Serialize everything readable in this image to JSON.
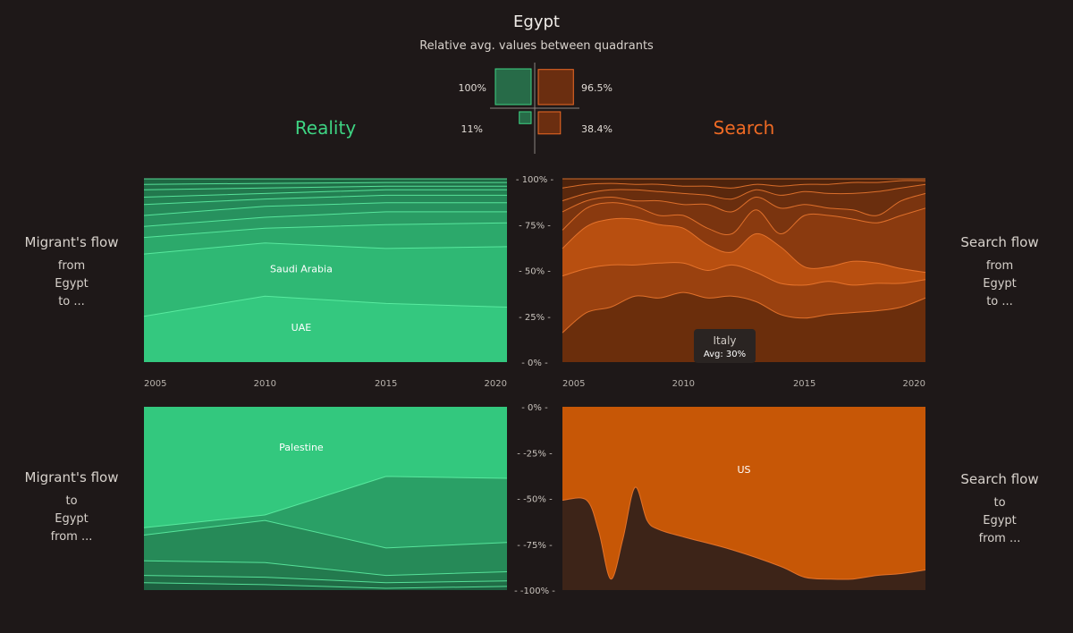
{
  "header": {
    "title": "Egypt",
    "subtitle": "Relative avg. values between quadrants"
  },
  "quadrant_legend": {
    "top_left_pct": "100%",
    "top_right_pct": "96.5%",
    "bottom_left_pct": "11%",
    "bottom_right_pct": "38.4%",
    "top_left_value": 100,
    "top_right_value": 96.5,
    "bottom_left_value": 11,
    "bottom_right_value": 38.4
  },
  "sections": {
    "reality": "Reality",
    "search": "Search"
  },
  "side_labels": {
    "top_left": {
      "head": "Migrant's flow",
      "l1": "from",
      "l2": "Egypt",
      "l3": "to ..."
    },
    "bottom_left": {
      "head": "Migrant's flow",
      "l1": "to",
      "l2": "Egypt",
      "l3": "from ..."
    },
    "top_right": {
      "head": "Search flow",
      "l1": "from",
      "l2": "Egypt",
      "l3": "to ..."
    },
    "bottom_right": {
      "head": "Search flow",
      "l1": "to",
      "l2": "Egypt",
      "l3": "from ..."
    }
  },
  "axis": {
    "top_ticks": [
      "- 100% -",
      "- 75% -",
      "- 50% -",
      "- 25% -",
      "- 0% -"
    ],
    "bottom_ticks": [
      "- 0% -",
      "- -25% -",
      "- -50% -",
      "- -75% -",
      "- -100% -"
    ],
    "x_ticks": [
      "2005",
      "2010",
      "2015",
      "2020"
    ]
  },
  "tooltip": {
    "name": "Italy",
    "avg": "Avg: 30%"
  },
  "colors": {
    "background": "#1e1818",
    "reality_accent": "#3ed483",
    "search_accent": "#ef6a24"
  },
  "chart_data": [
    {
      "type": "area",
      "id": "reality-top",
      "stacked": true,
      "normalized": true,
      "x": [
        2005,
        2010,
        2015,
        2020
      ],
      "ylim": [
        0,
        100
      ],
      "boundaries": [
        [
          25,
          36,
          32,
          30
        ],
        [
          59,
          65,
          62,
          63
        ],
        [
          68,
          73,
          75,
          76
        ],
        [
          74,
          79,
          82,
          82
        ],
        [
          80,
          85,
          87,
          87
        ],
        [
          86,
          89,
          91,
          91
        ],
        [
          90,
          92,
          94,
          94
        ],
        [
          94,
          95,
          96,
          96
        ],
        [
          97,
          97.5,
          98,
          98
        ],
        [
          100,
          100,
          100,
          100
        ]
      ],
      "labels": [
        {
          "text": "UAE",
          "x": 2011.5,
          "y": 17
        },
        {
          "text": "Saudi Arabia",
          "x": 2011.5,
          "y": 49
        }
      ]
    },
    {
      "type": "area",
      "id": "search-top",
      "stacked": true,
      "normalized": true,
      "x": [
        2005,
        2006,
        2007,
        2008,
        2009,
        2010,
        2011,
        2012,
        2013,
        2014,
        2015,
        2016,
        2017,
        2018,
        2019,
        2020
      ],
      "ylim": [
        0,
        100
      ],
      "boundaries": [
        [
          16,
          27,
          30,
          36,
          35,
          38,
          35,
          36,
          33,
          26,
          24,
          26,
          27,
          28,
          30,
          35
        ],
        [
          47,
          51,
          53,
          53,
          54,
          54,
          50,
          53,
          49,
          43,
          42,
          44,
          42,
          43,
          43,
          45
        ],
        [
          62,
          74,
          78,
          78,
          75,
          73,
          64,
          60,
          70,
          63,
          52,
          52,
          55,
          54,
          51,
          49
        ],
        [
          72,
          84,
          87,
          85,
          80,
          80,
          73,
          70,
          83,
          70,
          80,
          80,
          78,
          76,
          80,
          84
        ],
        [
          82,
          88,
          90,
          88,
          88,
          86,
          86,
          82,
          90,
          84,
          86,
          84,
          83,
          80,
          88,
          92
        ],
        [
          88,
          92,
          94,
          94,
          93,
          92,
          91,
          89,
          94,
          91,
          93,
          92,
          92,
          93,
          95,
          97
        ],
        [
          95,
          97,
          97.5,
          97,
          97,
          96,
          96,
          95,
          97,
          96,
          97,
          97,
          98,
          98,
          99,
          99
        ],
        [
          100,
          100,
          100,
          100,
          100,
          100,
          100,
          100,
          100,
          100,
          100,
          100,
          100,
          100,
          100,
          100
        ]
      ],
      "labels": []
    },
    {
      "type": "area",
      "id": "reality-bottom",
      "stacked": true,
      "normalized": true,
      "x": [
        2005,
        2010,
        2015,
        2020
      ],
      "ylim": [
        -100,
        0
      ],
      "boundaries": [
        [
          -66,
          -59,
          -38,
          -39
        ],
        [
          -70,
          -62,
          -77,
          -74
        ],
        [
          -84,
          -85,
          -92,
          -90
        ],
        [
          -92,
          -93,
          -96,
          -95
        ],
        [
          -96,
          -97,
          -99,
          -98
        ]
      ],
      "labels": [
        {
          "text": "Palestine",
          "x": 2011.5,
          "y": -24
        }
      ]
    },
    {
      "type": "area",
      "id": "search-bottom",
      "stacked": true,
      "normalized": true,
      "x": [
        2005,
        2006,
        2006.5,
        2007,
        2007.5,
        2008,
        2008.5,
        2009,
        2010,
        2012,
        2014,
        2015,
        2016,
        2017,
        2018,
        2019,
        2020
      ],
      "ylim": [
        -100,
        0
      ],
      "boundaries": [
        [
          -51,
          -51,
          -68,
          -94,
          -72,
          -44,
          -62,
          -67,
          -71,
          -78,
          -87,
          -93,
          -94,
          -94,
          -92,
          -91,
          -89
        ]
      ],
      "labels": [
        {
          "text": "US",
          "x": 2012.5,
          "y": -36
        }
      ]
    }
  ]
}
